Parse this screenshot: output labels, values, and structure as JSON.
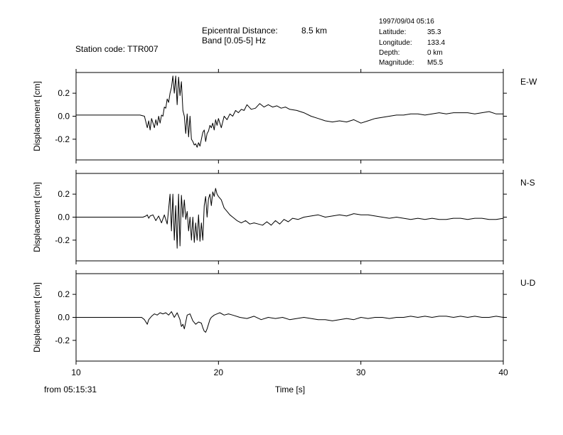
{
  "header": {
    "station": "Station code: TTR007",
    "epicentral_label": "Epicentral Distance:",
    "epicentral_value": "8.5 km",
    "band": "Band [0.05-5] Hz",
    "datetime": "1997/09/04 05:16",
    "info": [
      {
        "label": "Latitude:",
        "value": "35.3"
      },
      {
        "label": "Longitude:",
        "value": "133.4"
      },
      {
        "label": "Depth:",
        "value": "0 km"
      },
      {
        "label": "Magnitude:",
        "value": "M5.5"
      }
    ]
  },
  "footer": {
    "from": "from 05:15:31",
    "xlabel": "Time [s]"
  },
  "chart_data": [
    {
      "type": "line",
      "component": "E-W",
      "ylabel": "Displacement [cm]",
      "xlim": [
        10,
        40
      ],
      "ylim": [
        -0.38,
        0.38
      ],
      "xticks": [
        10,
        20,
        30,
        40
      ],
      "yticks": [
        0.2,
        0.0,
        -0.2
      ],
      "ytick_labels": [
        "0.2",
        "0.0",
        "-0.2"
      ],
      "x": [
        10,
        14.5,
        14.8,
        14.9,
        15.0,
        15.1,
        15.2,
        15.3,
        15.4,
        15.5,
        15.6,
        15.7,
        15.8,
        15.9,
        16.0,
        16.1,
        16.2,
        16.3,
        16.4,
        16.5,
        16.6,
        16.7,
        16.8,
        16.9,
        17.0,
        17.1,
        17.2,
        17.3,
        17.4,
        17.5,
        17.6,
        17.7,
        17.8,
        17.9,
        18.0,
        18.1,
        18.2,
        18.3,
        18.4,
        18.5,
        18.6,
        18.7,
        18.8,
        18.9,
        19.0,
        19.1,
        19.2,
        19.3,
        19.4,
        19.5,
        19.6,
        19.7,
        19.8,
        19.9,
        20.0,
        20.2,
        20.4,
        20.6,
        20.8,
        21.0,
        21.2,
        21.4,
        21.6,
        21.8,
        22.0,
        22.3,
        22.6,
        22.9,
        23.2,
        23.5,
        23.8,
        24.1,
        24.4,
        24.7,
        25.0,
        25.5,
        26.0,
        26.5,
        27.0,
        27.5,
        28.0,
        28.5,
        29.0,
        29.5,
        30.0,
        30.5,
        31.0,
        31.5,
        32.0,
        32.5,
        33.0,
        33.5,
        34.0,
        34.5,
        35.0,
        35.5,
        36.0,
        36.5,
        37.0,
        37.5,
        38.0,
        38.5,
        39.0,
        39.5,
        40.0
      ],
      "y": [
        0.01,
        0.01,
        0.0,
        -0.05,
        -0.1,
        -0.04,
        -0.12,
        -0.02,
        -0.06,
        -0.1,
        -0.03,
        -0.08,
        0.0,
        -0.06,
        0.01,
        0.0,
        0.08,
        0.07,
        0.15,
        0.12,
        0.2,
        0.25,
        0.35,
        0.2,
        0.35,
        0.1,
        0.34,
        0.18,
        0.3,
        0.05,
        0.0,
        -0.15,
        0.02,
        -0.18,
        0.0,
        -0.2,
        -0.22,
        -0.25,
        -0.24,
        -0.27,
        -0.23,
        -0.26,
        -0.2,
        -0.14,
        -0.12,
        -0.22,
        -0.15,
        -0.13,
        -0.08,
        -0.1,
        -0.06,
        -0.12,
        -0.03,
        -0.08,
        -0.02,
        -0.1,
        0.0,
        -0.03,
        0.02,
        0.0,
        0.05,
        0.03,
        0.06,
        0.05,
        0.1,
        0.06,
        0.07,
        0.11,
        0.08,
        0.1,
        0.08,
        0.09,
        0.07,
        0.08,
        0.06,
        0.05,
        0.03,
        0.0,
        -0.02,
        -0.04,
        -0.05,
        -0.04,
        -0.05,
        -0.03,
        -0.06,
        -0.04,
        -0.02,
        -0.01,
        0.0,
        0.01,
        0.01,
        0.02,
        0.02,
        0.01,
        0.02,
        0.03,
        0.02,
        0.03,
        0.03,
        0.03,
        0.02,
        0.03,
        0.04,
        0.02,
        0.02
      ]
    },
    {
      "type": "line",
      "component": "N-S",
      "ylabel": "Displacement [cm]",
      "xlim": [
        10,
        40
      ],
      "ylim": [
        -0.38,
        0.38
      ],
      "xticks": [
        10,
        20,
        30,
        40
      ],
      "yticks": [
        0.2,
        0.0,
        -0.2
      ],
      "ytick_labels": [
        "0.2",
        "0.0",
        "-0.2"
      ],
      "x": [
        10,
        14.7,
        14.9,
        15.0,
        15.1,
        15.2,
        15.4,
        15.6,
        15.8,
        16.0,
        16.2,
        16.4,
        16.6,
        16.7,
        16.8,
        16.9,
        17.0,
        17.1,
        17.2,
        17.3,
        17.4,
        17.5,
        17.6,
        17.7,
        17.8,
        17.9,
        18.0,
        18.1,
        18.2,
        18.3,
        18.4,
        18.5,
        18.6,
        18.7,
        18.8,
        18.9,
        19.0,
        19.1,
        19.2,
        19.3,
        19.4,
        19.5,
        19.6,
        19.7,
        19.8,
        19.9,
        20.0,
        20.2,
        20.4,
        20.6,
        20.8,
        21.0,
        21.3,
        21.6,
        21.9,
        22.2,
        22.5,
        22.8,
        23.1,
        23.4,
        23.7,
        24.0,
        24.3,
        24.6,
        24.9,
        25.2,
        25.6,
        26.0,
        26.5,
        27.0,
        27.5,
        28.0,
        28.5,
        29.0,
        29.5,
        30.0,
        30.5,
        31.0,
        31.5,
        32.0,
        32.5,
        33.0,
        33.5,
        34.0,
        34.5,
        35.0,
        35.5,
        36.0,
        36.5,
        37.0,
        37.5,
        38.0,
        38.5,
        39.0,
        39.5,
        40.0
      ],
      "y": [
        0.0,
        0.0,
        0.01,
        0.02,
        -0.01,
        0.01,
        0.02,
        -0.03,
        0.01,
        -0.05,
        0.02,
        -0.06,
        0.2,
        -0.12,
        0.2,
        -0.2,
        0.1,
        -0.27,
        0.2,
        -0.25,
        0.19,
        0.0,
        0.15,
        -0.02,
        0.05,
        -0.12,
        0.0,
        -0.2,
        0.0,
        -0.22,
        -0.05,
        -0.2,
        0.02,
        -0.21,
        -0.05,
        -0.2,
        0.1,
        0.18,
        0.0,
        0.16,
        0.2,
        0.1,
        0.22,
        0.18,
        0.25,
        0.2,
        0.18,
        0.15,
        0.08,
        0.05,
        0.02,
        0.0,
        -0.03,
        -0.05,
        -0.03,
        -0.06,
        -0.05,
        -0.06,
        -0.07,
        -0.04,
        -0.07,
        -0.03,
        -0.06,
        -0.02,
        -0.04,
        -0.01,
        -0.02,
        0.0,
        0.01,
        0.02,
        0.0,
        0.01,
        0.02,
        0.01,
        0.03,
        0.02,
        0.02,
        0.01,
        0.0,
        -0.01,
        0.0,
        -0.01,
        -0.02,
        -0.01,
        -0.02,
        -0.01,
        -0.02,
        -0.02,
        -0.01,
        -0.01,
        -0.02,
        -0.01,
        -0.01,
        -0.02,
        -0.02,
        -0.01
      ]
    },
    {
      "type": "line",
      "component": "U-D",
      "ylabel": "Displacement [cm]",
      "xlim": [
        10,
        40
      ],
      "ylim": [
        -0.38,
        0.38
      ],
      "xticks": [
        10,
        20,
        30,
        40
      ],
      "yticks": [
        0.2,
        0.0,
        -0.2
      ],
      "ytick_labels": [
        "0.2",
        "0.0",
        "-0.2"
      ],
      "x": [
        10,
        14.6,
        14.8,
        14.9,
        15.0,
        15.1,
        15.3,
        15.5,
        15.7,
        15.9,
        16.1,
        16.3,
        16.5,
        16.7,
        16.9,
        17.1,
        17.3,
        17.4,
        17.5,
        17.6,
        17.7,
        17.8,
        18.0,
        18.2,
        18.4,
        18.6,
        18.8,
        18.9,
        19.0,
        19.1,
        19.2,
        19.3,
        19.4,
        19.5,
        19.7,
        19.9,
        20.1,
        20.4,
        20.7,
        21.0,
        21.5,
        22.0,
        22.5,
        23.0,
        23.5,
        24.0,
        24.5,
        25.0,
        25.5,
        26.0,
        26.5,
        27.0,
        27.5,
        28.0,
        28.5,
        29.0,
        29.5,
        30.0,
        30.5,
        31.0,
        31.5,
        32.0,
        32.5,
        33.0,
        33.5,
        34.0,
        34.5,
        35.0,
        35.5,
        36.0,
        36.5,
        37.0,
        37.5,
        38.0,
        38.5,
        39.0,
        39.5,
        40.0
      ],
      "y": [
        0.0,
        0.0,
        -0.02,
        -0.04,
        -0.06,
        -0.02,
        0.01,
        0.03,
        0.02,
        0.04,
        0.03,
        0.04,
        0.02,
        0.05,
        0.0,
        0.04,
        -0.02,
        -0.08,
        -0.06,
        -0.1,
        -0.04,
        0.02,
        0.03,
        -0.03,
        -0.06,
        -0.04,
        -0.05,
        -0.09,
        -0.12,
        -0.13,
        -0.1,
        -0.06,
        -0.02,
        0.0,
        0.02,
        0.03,
        0.04,
        0.02,
        0.03,
        0.02,
        0.0,
        -0.01,
        0.01,
        -0.02,
        0.0,
        -0.01,
        0.0,
        -0.02,
        -0.01,
        0.0,
        -0.01,
        -0.02,
        -0.02,
        -0.03,
        -0.02,
        -0.01,
        -0.02,
        0.0,
        -0.01,
        0.0,
        0.0,
        -0.01,
        0.0,
        0.0,
        0.01,
        0.0,
        0.01,
        0.0,
        0.01,
        0.01,
        0.0,
        0.01,
        0.0,
        0.01,
        0.0,
        0.0,
        0.01,
        0.0
      ]
    }
  ]
}
